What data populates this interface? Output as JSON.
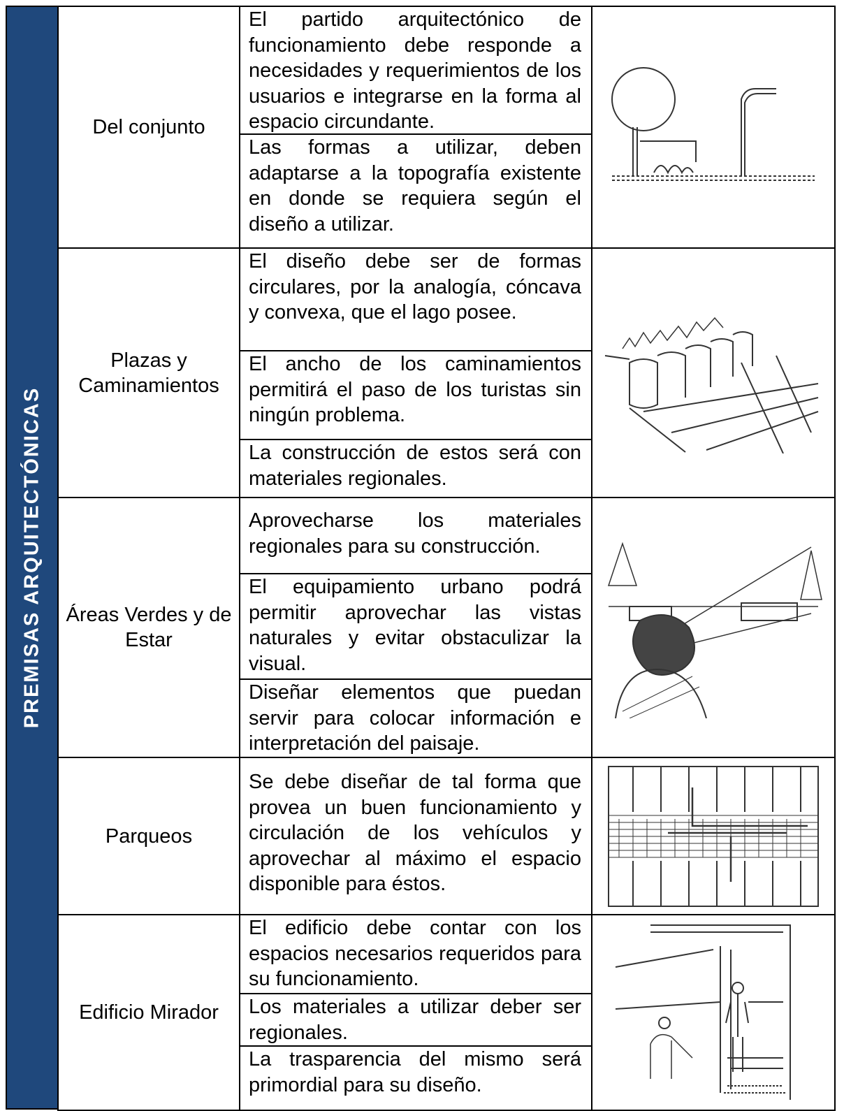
{
  "side_label": "PREMISAS ARQUITECTÓNICAS",
  "rows": [
    {
      "category": "Del conjunto",
      "items": [
        "El partido arquitectónico de funcionamiento debe responde a necesidades y requerimientos de los usuarios e integrarse en la forma al espacio circundante.",
        "Las formas a utilizar, deben adaptarse a la topografía existente en donde se requiera según el diseño a utilizar."
      ]
    },
    {
      "category": "Plazas y Caminamientos",
      "items": [
        "El diseño debe ser de formas circulares, por la analogía, cóncava y convexa, que el lago posee.",
        "El ancho de los caminamientos permitirá el paso de los turistas sin ningún problema.",
        "La construcción de estos será con materiales regionales."
      ]
    },
    {
      "category": "Áreas Verdes y de Estar",
      "items": [
        "Aprovecharse los materiales regionales para su construcción.",
        "El equipamiento urbano podrá permitir aprovechar las vistas naturales y evitar obstaculizar la visual.",
        "Diseñar elementos que puedan servir para colocar información e interpretación del paisaje."
      ]
    },
    {
      "category": "Parqueos",
      "items": [
        "Se debe diseñar de tal forma que provea un buen funcionamiento y circulación de los vehículos y aprovechar al máximo el espacio disponible para éstos."
      ]
    },
    {
      "category": "Edificio Mirador",
      "items": [
        "El edificio debe contar con los espacios necesarios requeridos para su funcionamiento.",
        "Los materiales a utilizar deber ser regionales.",
        "La trasparencia del mismo será primordial para su diseño."
      ]
    }
  ]
}
